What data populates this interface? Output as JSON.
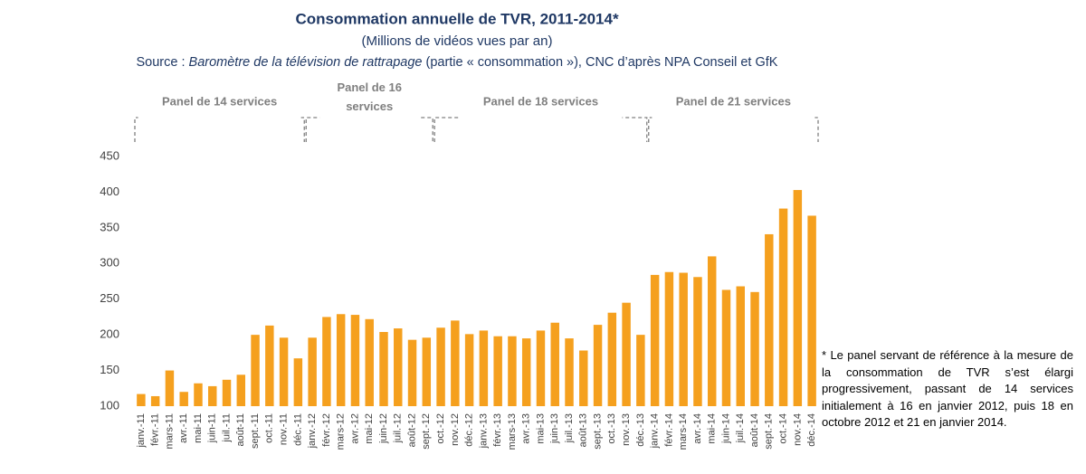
{
  "chart_data": {
    "type": "bar",
    "title": "Consommation annuelle de TVR, 2011-2014*",
    "subtitle": "(Millions de vidéos vues par an)",
    "source": [
      "Source : ",
      "Baromètre de la télévision de rattrapage",
      " (partie « consommation »), CNC d’après NPA Conseil et GfK"
    ],
    "panels": [
      "Panel de 14 services",
      "Panel de 16 services",
      "Panel de 18 services",
      "Panel de 21 services"
    ],
    "footnote": "* Le panel servant de référence à la mesure de la consommation de TVR s’est élargi progressivement, passant de 14 services initialement à 16 en janvier 2012, puis 18 en octobre 2012 et 21 en janvier 2014.",
    "categories": [
      "janv.-11",
      "févr.-11",
      "mars-11",
      "avr.-11",
      "mai-11",
      "juin-11",
      "juil.-11",
      "août-11",
      "sept.-11",
      "oct.-11",
      "nov.-11",
      "déc.-11",
      "janv.-12",
      "févr.-12",
      "mars-12",
      "avr.-12",
      "mai-12",
      "juin-12",
      "juil.-12",
      "août-12",
      "sept.-12",
      "oct.-12",
      "nov.-12",
      "déc.-12",
      "janv.-13",
      "févr.-13",
      "mars-13",
      "avr.-13",
      "mai-13",
      "juin-13",
      "juil.-13",
      "août-13",
      "sept.-13",
      "oct.-13",
      "nov.-13",
      "déc.-13",
      "janv.-14",
      "févr.-14",
      "mars-14",
      "avr.-14",
      "mai-14",
      "juin-14",
      "juil.-14",
      "août-14",
      "sept.-14",
      "oct.-14",
      "nov.-14",
      "déc.-14"
    ],
    "values": [
      117,
      114,
      150,
      120,
      132,
      128,
      137,
      144,
      200,
      213,
      196,
      167,
      196,
      225,
      229,
      228,
      222,
      204,
      209,
      193,
      196,
      210,
      220,
      201,
      206,
      198,
      198,
      195,
      206,
      217,
      195,
      178,
      214,
      231,
      245,
      200,
      284,
      288,
      287,
      281,
      310,
      263,
      268,
      260,
      341,
      377,
      403,
      367
    ],
    "color": "#f5a01e",
    "ylim": [
      100,
      450
    ],
    "yticks": [
      100,
      150,
      200,
      250,
      300,
      350,
      400,
      450
    ],
    "grid": false
  }
}
